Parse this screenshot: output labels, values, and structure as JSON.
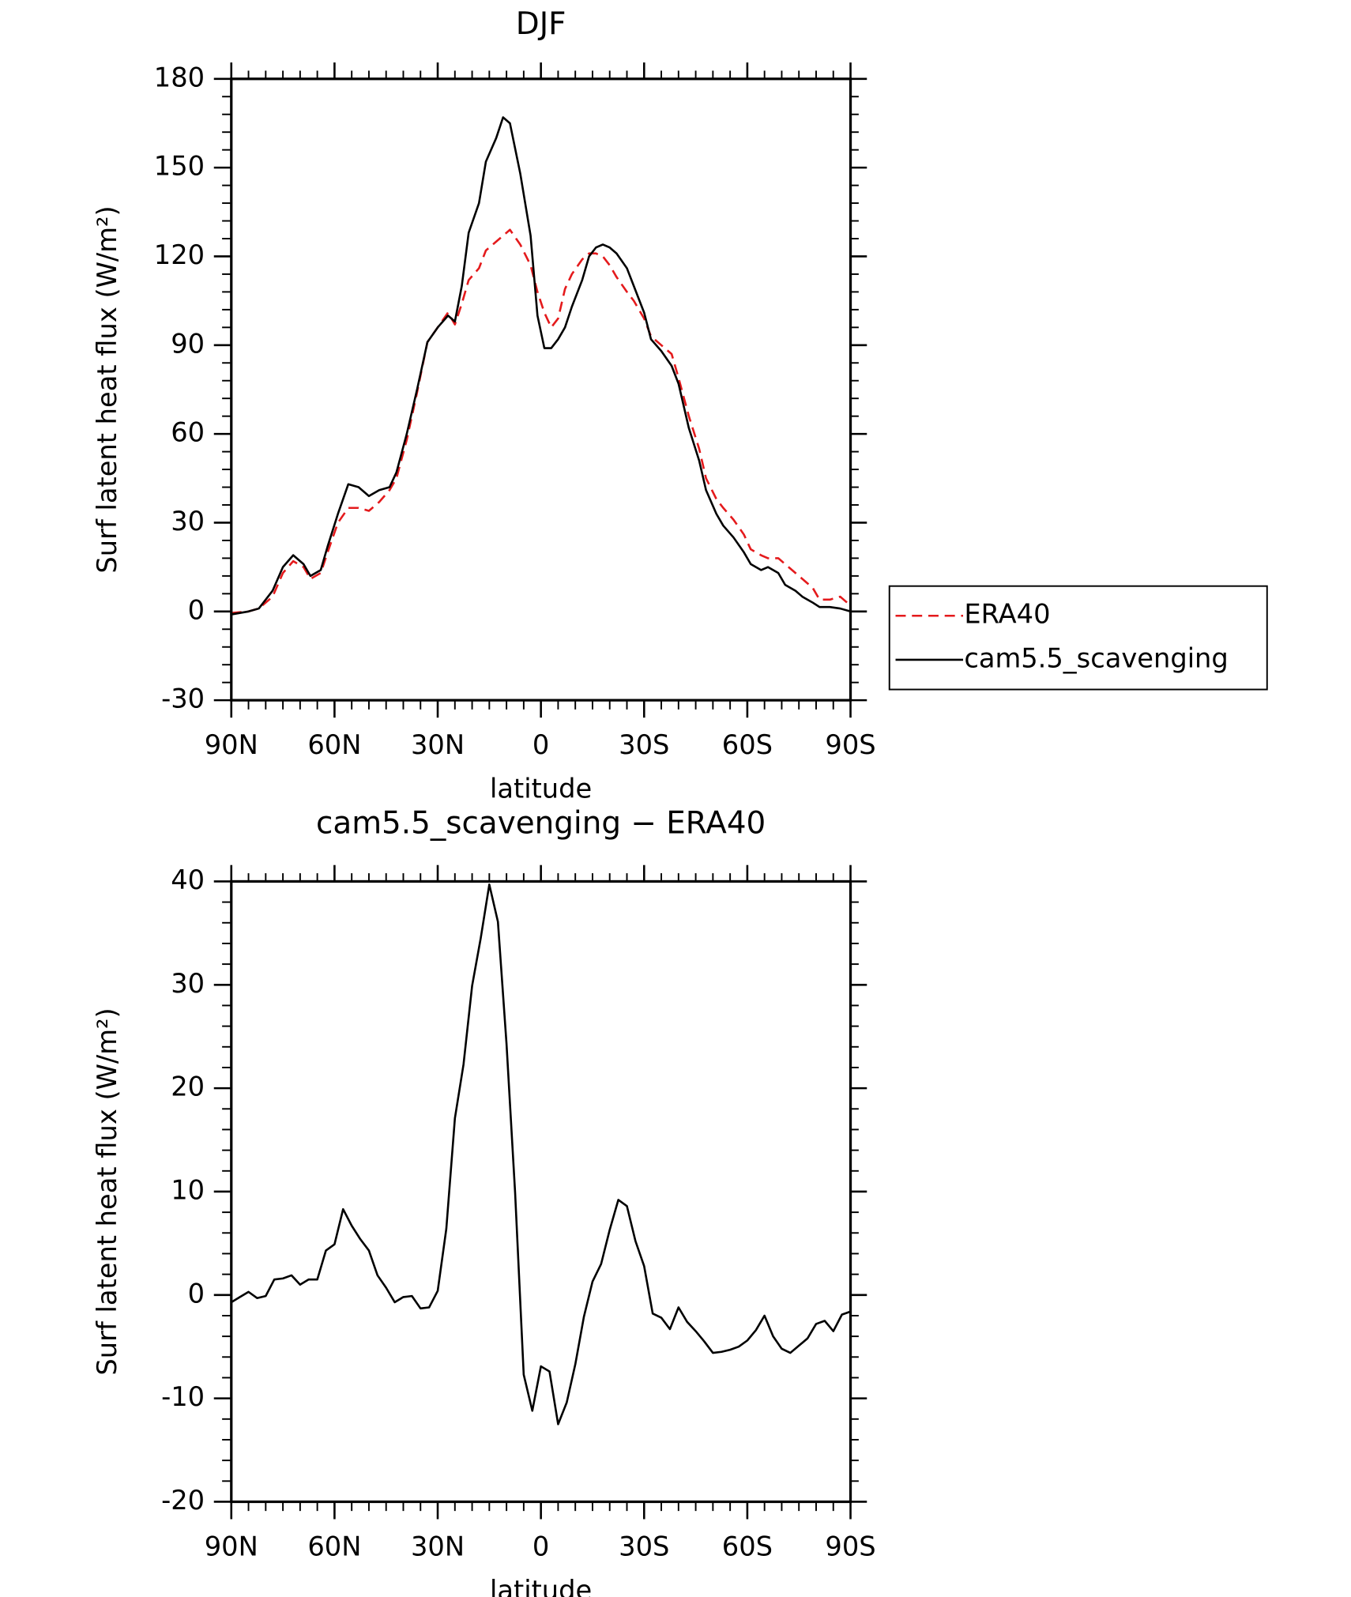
{
  "chart_data": [
    {
      "type": "line",
      "title": "DJF",
      "xlabel": "latitude",
      "ylabel": "Surf latent heat flux (W/m²)",
      "x": [
        90,
        85,
        82,
        78,
        75,
        72,
        69,
        67,
        64,
        62,
        59,
        56,
        53,
        50,
        47,
        44,
        42,
        39,
        36,
        33,
        30,
        27,
        25,
        23,
        21,
        18,
        16,
        13,
        11,
        9,
        6,
        3,
        1,
        -1,
        -3,
        -5,
        -7,
        -9,
        -12,
        -14,
        -16,
        -18,
        -20,
        -22,
        -25,
        -27,
        -30,
        -32,
        -35,
        -38,
        -40,
        -43,
        -46,
        -48,
        -51,
        -53,
        -56,
        -59,
        -61,
        -64,
        -66,
        -69,
        -71,
        -74,
        -76,
        -79,
        -81,
        -84,
        -87,
        -90
      ],
      "series": [
        {
          "name": "ERA40",
          "color": "#e41a1c",
          "dash": true,
          "values": [
            -0.5,
            0,
            1,
            5,
            13,
            17,
            15,
            11,
            13,
            20,
            30,
            35,
            35,
            34,
            37,
            41,
            45,
            58,
            74,
            91,
            96,
            101,
            97,
            104,
            112,
            116,
            122,
            125,
            127,
            129,
            124,
            117,
            108,
            101,
            96,
            99,
            109,
            114,
            119,
            121,
            121,
            120,
            117,
            113,
            108,
            105,
            99,
            93,
            90,
            87,
            79,
            66,
            55,
            45,
            38,
            35,
            31,
            26,
            21,
            19,
            18,
            18,
            16,
            13,
            11,
            8,
            4,
            4,
            5,
            2
          ]
        },
        {
          "name": "cam5.5_scavenging",
          "color": "#000000",
          "dash": false,
          "values": [
            -1,
            0,
            1,
            7,
            15,
            19,
            16,
            12,
            14,
            22,
            33,
            43,
            42,
            39,
            41,
            42,
            47,
            60,
            75,
            91,
            96,
            100,
            98,
            110,
            128,
            138,
            152,
            160,
            167,
            165,
            148,
            127,
            100,
            89,
            89,
            92,
            96,
            103,
            112,
            120,
            123,
            124,
            123,
            121,
            116,
            110,
            101,
            92,
            88,
            83,
            77,
            62,
            51,
            41,
            33,
            29,
            25,
            20,
            16,
            14,
            15,
            13,
            9,
            7,
            5,
            3,
            1.5,
            1.5,
            1,
            0
          ]
        }
      ],
      "xlim": [
        90,
        -90
      ],
      "xticks": [
        {
          "value": 90,
          "label": "90N"
        },
        {
          "value": 60,
          "label": "60N"
        },
        {
          "value": 30,
          "label": "30N"
        },
        0,
        {
          "value": -30,
          "label": "30S"
        },
        {
          "value": -60,
          "label": "60S"
        },
        {
          "value": -90,
          "label": "90S"
        }
      ],
      "ylim": [
        -30,
        180
      ],
      "yticks": [
        -30,
        0,
        30,
        60,
        90,
        120,
        150,
        180
      ],
      "legend": "right"
    },
    {
      "type": "line",
      "title": "cam5.5_scavenging − ERA40",
      "xlabel": "latitude",
      "ylabel": "Surf latent heat flux (W/m²)",
      "x": [
        90,
        87.5,
        85,
        82.5,
        80,
        77.5,
        75,
        72.5,
        70,
        67.5,
        65,
        62.5,
        60,
        57.5,
        55,
        52.5,
        50,
        47.5,
        45,
        42.5,
        40,
        37.5,
        35,
        32.5,
        30,
        27.5,
        25,
        22.5,
        20,
        17.5,
        15,
        12.5,
        10,
        7.5,
        5,
        2.5,
        0,
        -2.5,
        -5,
        -7.5,
        -10,
        -12.5,
        -15,
        -17.5,
        -20,
        -22.5,
        -25,
        -27.5,
        -30,
        -32.5,
        -35,
        -37.5,
        -40,
        -42.5,
        -45,
        -47.5,
        -50,
        -52.5,
        -55,
        -57.5,
        -60,
        -62.5,
        -65,
        -67.5,
        -70,
        -72.5,
        -75,
        -77.5,
        -80,
        -82.5,
        -85,
        -87.5,
        -90
      ],
      "values": [
        -0.7,
        -0.2,
        0.3,
        -0.3,
        -0.1,
        1.5,
        1.6,
        1.9,
        1,
        1.5,
        1.5,
        4.3,
        4.9,
        8.3,
        6.7,
        5.4,
        4.3,
        1.9,
        0.7,
        -0.7,
        -0.2,
        -0.1,
        -1.3,
        -1.2,
        0.4,
        6.4,
        17.1,
        22.3,
        29.9,
        34.5,
        39.7,
        36.1,
        24.3,
        9.9,
        -7.7,
        -11.2,
        -6.9,
        -7.4,
        -12.5,
        -10.4,
        -6.7,
        -2.1,
        1.3,
        3,
        6.3,
        9.2,
        8.6,
        5.2,
        2.8,
        -1.8,
        -2.2,
        -3.3,
        -1.2,
        -2.6,
        -3.5,
        -4.5,
        -5.6,
        -5.5,
        -5.3,
        -5,
        -4.4,
        -3.4,
        -2,
        -4,
        -5.2,
        -5.6,
        -4.9,
        -4.2,
        -2.8,
        -2.5,
        -3.5,
        -1.9,
        -1.6
      ],
      "color": "#000000",
      "xlim": [
        90,
        -90
      ],
      "xticks": [
        {
          "value": 90,
          "label": "90N"
        },
        {
          "value": 60,
          "label": "60N"
        },
        {
          "value": 30,
          "label": "30N"
        },
        0,
        {
          "value": -30,
          "label": "30S"
        },
        {
          "value": -60,
          "label": "60S"
        },
        {
          "value": -90,
          "label": "90S"
        }
      ],
      "ylim": [
        -20,
        40
      ],
      "yticks": [
        -20,
        -10,
        0,
        10,
        20,
        30,
        40
      ]
    }
  ]
}
